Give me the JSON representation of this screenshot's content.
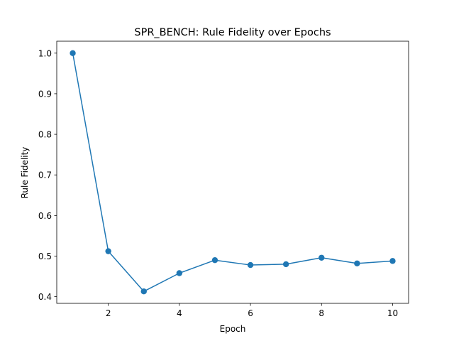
{
  "chart_data": {
    "type": "line",
    "title": "SPR_BENCH: Rule Fidelity over Epochs",
    "xlabel": "Epoch",
    "ylabel": "Rule Fidelity",
    "x": [
      1,
      2,
      3,
      4,
      5,
      6,
      7,
      8,
      9,
      10
    ],
    "series": [
      {
        "values": [
          1.0,
          0.512,
          0.413,
          0.458,
          0.49,
          0.478,
          0.48,
          0.496,
          0.482,
          0.488
        ],
        "color": "#1f77b4",
        "marker": "circle"
      }
    ],
    "xticks": [
      "2",
      "4",
      "6",
      "8",
      "10"
    ],
    "yticks": [
      "0.4",
      "0.5",
      "0.6",
      "0.7",
      "0.8",
      "0.9",
      "1.0"
    ],
    "xlim": [
      0.55,
      10.45
    ],
    "ylim": [
      0.3836,
      1.0294
    ],
    "grid": false,
    "legend": "none"
  }
}
